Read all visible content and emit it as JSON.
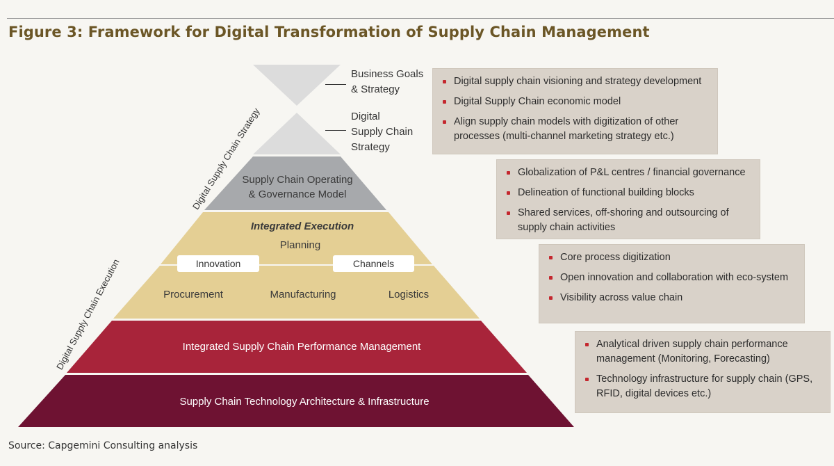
{
  "title": "Figure 3: Framework for Digital Transformation of Supply Chain Management",
  "source": "Source: Capgemini Consulting analysis",
  "colors": {
    "title": "#6b5626",
    "hourglass": "#dcdcdc",
    "operating": "#a7a9ac",
    "execution": "#e4cf94",
    "performance": "#a8243a",
    "technology": "#6e1232",
    "box_bg": "#d9d2c9",
    "bullet": "#c4272e"
  },
  "vertical_labels": {
    "strategy": "Digital Supply Chain Strategy",
    "execution": "Digital Supply Chain Execution"
  },
  "levels": {
    "business_goals": [
      "Business Goals",
      "& Strategy"
    ],
    "digital_strategy": [
      "Digital",
      "Supply Chain",
      "Strategy"
    ],
    "operating_model": [
      "Supply Chain Operating",
      "& Governance Model"
    ],
    "integrated_execution": "Integrated Execution",
    "planning": "Planning",
    "innovation": "Innovation",
    "channels": "Channels",
    "procurement": "Procurement",
    "manufacturing": "Manufacturing",
    "logistics": "Logistics",
    "performance": "Integrated Supply Chain Performance Management",
    "technology": "Supply Chain Technology Architecture & Infrastructure"
  },
  "boxes": [
    {
      "items": [
        "Digital supply chain visioning and strategy development",
        "Digital Supply Chain economic model",
        "Align supply chain models with digitization of other processes (multi-channel marketing strategy etc.)"
      ]
    },
    {
      "items": [
        "Globalization of P&L centres / financial governance",
        "Delineation of functional building blocks",
        "Shared services, off-shoring and outsourcing of supply chain activities"
      ]
    },
    {
      "items": [
        "Core process digitization",
        "Open innovation and collaboration with eco-system",
        "Visibility across value chain"
      ]
    },
    {
      "items": [
        "Analytical driven supply chain performance management (Monitoring, Forecasting)",
        "Technology infrastructure for supply chain (GPS, RFID, digital devices etc.)"
      ]
    }
  ]
}
